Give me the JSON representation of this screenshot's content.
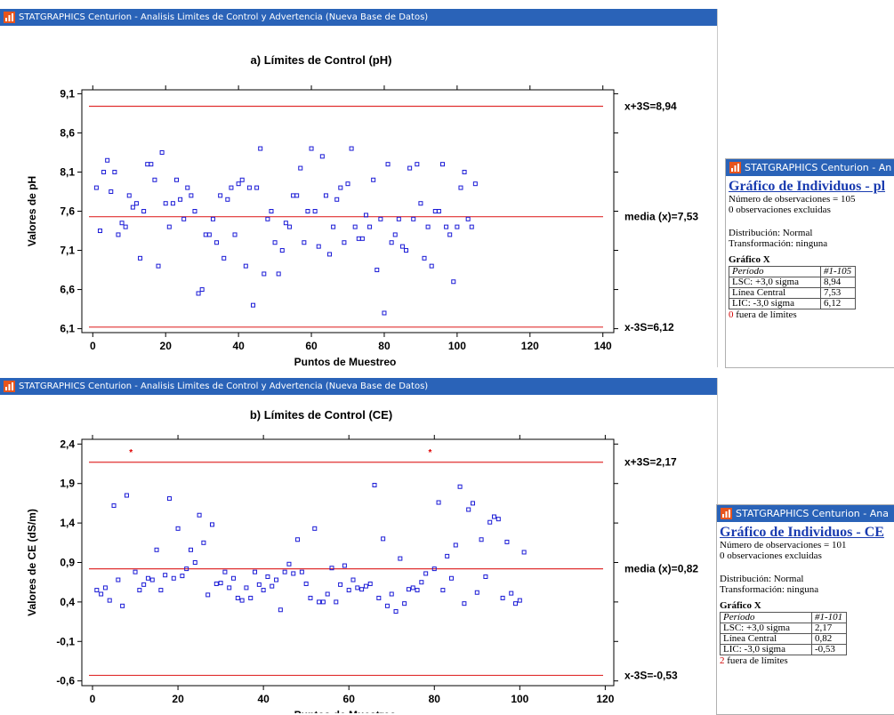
{
  "window_a": {
    "title": "STATGRAPHICS Centurion - Analisis Limites de Control y Advertencia (Nueva Base de Datos)"
  },
  "window_b": {
    "title": "STATGRAPHICS Centurion - Analisis Limites de Control y Advertencia (Nueva Base de Datos)"
  },
  "info_a": {
    "title": "STATGRAPHICS Centurion - An",
    "heading": "Gráfico de Individuos - pl",
    "n_obs": "Número de observaciones = 105",
    "excluded": "0 observaciones excluidas",
    "distribution": "Distribución: Normal",
    "transformation": "Transformación: ninguna",
    "section": "Gráfico X",
    "table": [
      [
        "Período",
        "#1-105"
      ],
      [
        "LSC: +3,0 sigma",
        "8,94"
      ],
      [
        "Línea Central",
        "7,53"
      ],
      [
        "LIC: -3,0 sigma",
        "6,12"
      ]
    ],
    "out_count": "0",
    "out_text": " fuera de límites"
  },
  "info_b": {
    "title": "STATGRAPHICS Centurion - Ana",
    "heading": "Gráfico de Individuos - CE",
    "n_obs": "Número de observaciones = 101",
    "excluded": "0 observaciones excluidas",
    "distribution": "Distribución: Normal",
    "transformation": "Transformación: ninguna",
    "section": "Gráfico X",
    "table": [
      [
        "Período",
        "#1-101"
      ],
      [
        "LSC: +3,0 sigma",
        "2,17"
      ],
      [
        "Línea Central",
        "0,82"
      ],
      [
        "LIC: -3,0 sigma",
        "-0,53"
      ]
    ],
    "out_count": "2",
    "out_text": " fuera de límites"
  },
  "chart_data": [
    {
      "type": "scatter",
      "title": "a) Límites de Control (pH)",
      "xlabel": "Puntos de Muestreo",
      "ylabel": "Valores de pH",
      "xlim": [
        -3,
        143
      ],
      "ylim": [
        6.05,
        9.15
      ],
      "xticks": [
        0,
        20,
        40,
        60,
        80,
        100,
        120,
        140
      ],
      "yticks": [
        6.1,
        6.6,
        7.1,
        7.6,
        8.1,
        8.6,
        9.1
      ],
      "ytick_labels": [
        "6,1",
        "6,6",
        "7,1",
        "7,6",
        "8,1",
        "8,6",
        "9,1"
      ],
      "grid": false,
      "ucl": 8.94,
      "center": 7.53,
      "lcl": 6.12,
      "ucl_label": "x+3S=8,94",
      "center_label": "media (x)=7,53",
      "lcl_label": "x-3S=6,12",
      "line_color": "#e03030",
      "point_color": "#1a1ad6",
      "out_color": "#e00000",
      "x": [
        1,
        2,
        3,
        4,
        5,
        6,
        7,
        8,
        9,
        10,
        11,
        12,
        13,
        14,
        15,
        16,
        17,
        18,
        19,
        20,
        21,
        22,
        23,
        24,
        25,
        26,
        27,
        28,
        29,
        30,
        31,
        32,
        33,
        34,
        35,
        36,
        37,
        38,
        39,
        40,
        41,
        42,
        43,
        44,
        45,
        46,
        47,
        48,
        49,
        50,
        51,
        52,
        53,
        54,
        55,
        56,
        57,
        58,
        59,
        60,
        61,
        62,
        63,
        64,
        65,
        66,
        67,
        68,
        69,
        70,
        71,
        72,
        73,
        74,
        75,
        76,
        77,
        78,
        79,
        80,
        81,
        82,
        83,
        84,
        85,
        86,
        87,
        88,
        89,
        90,
        91,
        92,
        93,
        94,
        95,
        96,
        97,
        98,
        99,
        100,
        101,
        102,
        103,
        104,
        105
      ],
      "y": [
        7.9,
        7.35,
        8.1,
        8.25,
        7.85,
        8.1,
        7.3,
        7.45,
        7.4,
        7.8,
        7.65,
        7.7,
        7.0,
        7.6,
        8.2,
        8.2,
        8.0,
        6.9,
        8.35,
        7.7,
        7.4,
        7.7,
        8.0,
        7.75,
        7.5,
        7.9,
        7.8,
        7.6,
        6.55,
        6.6,
        7.3,
        7.3,
        7.5,
        7.2,
        7.8,
        7.0,
        7.75,
        7.9,
        7.3,
        7.95,
        8.0,
        6.9,
        7.9,
        6.4,
        7.9,
        8.4,
        6.8,
        7.5,
        7.6,
        7.2,
        6.8,
        7.1,
        7.45,
        7.4,
        7.8,
        7.8,
        8.15,
        7.2,
        7.6,
        8.4,
        7.6,
        7.15,
        8.3,
        7.8,
        7.05,
        7.4,
        7.75,
        7.9,
        7.2,
        7.95,
        8.4,
        7.4,
        7.25,
        7.25,
        7.55,
        7.4,
        8.0,
        6.85,
        7.5,
        6.3,
        8.2,
        7.2,
        7.3,
        7.5,
        7.15,
        7.1,
        8.15,
        7.5,
        8.2,
        7.7,
        7.0,
        7.4,
        6.9,
        7.6,
        7.6,
        8.2,
        7.4,
        7.3,
        6.7,
        7.4,
        7.9,
        8.1,
        7.5,
        7.4,
        7.95
      ],
      "x_plot": [
        1,
        2,
        3,
        4,
        5,
        6,
        7,
        8,
        9,
        10,
        11,
        12,
        13,
        14,
        15,
        16,
        17,
        18,
        19,
        20,
        21,
        22,
        23,
        24,
        25,
        26,
        27,
        28,
        29,
        30,
        31,
        32,
        33,
        34,
        35,
        36,
        37,
        38,
        39,
        40,
        41,
        42,
        43,
        44,
        45,
        46,
        47,
        48,
        49,
        50,
        51,
        52,
        53,
        54,
        55,
        56,
        57,
        58,
        59,
        60,
        61,
        62,
        63,
        64,
        65,
        66,
        67,
        68,
        69,
        70,
        71,
        72,
        73,
        74,
        75,
        76,
        77,
        78,
        79,
        80,
        81,
        82,
        83,
        84,
        85,
        86,
        87,
        88,
        89,
        90,
        91,
        92,
        93,
        94,
        95,
        96,
        97,
        98,
        99,
        100,
        101,
        102,
        103,
        104,
        105
      ]
    },
    {
      "type": "scatter",
      "title": "b) Límites de Control (CE)",
      "xlabel": "Puntos de Muestreo",
      "ylabel": "Valores de CE (dS/m)",
      "xlim": [
        -2.5,
        122
      ],
      "ylim": [
        -0.66,
        2.46
      ],
      "xticks": [
        0,
        20,
        40,
        60,
        80,
        100,
        120
      ],
      "yticks": [
        -0.6,
        -0.1,
        0.4,
        0.9,
        1.4,
        1.9,
        2.4
      ],
      "ytick_labels": [
        "-0,6",
        "-0,1",
        "0,4",
        "0,9",
        "1,4",
        "1,9",
        "2,4"
      ],
      "grid": false,
      "ucl": 2.17,
      "center": 0.82,
      "lcl": -0.53,
      "ucl_label": "x+3S=2,17",
      "center_label": "media (x)=0,82",
      "lcl_label": "x-3S=-0,53",
      "line_color": "#e03030",
      "point_color": "#1a1ad6",
      "out_color": "#e00000",
      "x": [
        1,
        2,
        3,
        4,
        5,
        6,
        7,
        8,
        9,
        10,
        11,
        12,
        13,
        14,
        15,
        16,
        17,
        18,
        19,
        20,
        21,
        22,
        23,
        24,
        25,
        26,
        27,
        28,
        29,
        30,
        31,
        32,
        33,
        34,
        35,
        36,
        37,
        38,
        39,
        40,
        41,
        42,
        43,
        44,
        45,
        46,
        47,
        48,
        49,
        50,
        51,
        52,
        53,
        54,
        55,
        56,
        57,
        58,
        59,
        60,
        61,
        62,
        63,
        64,
        65,
        66,
        67,
        68,
        69,
        70,
        71,
        72,
        73,
        74,
        75,
        76,
        77,
        78,
        79,
        80,
        81,
        82,
        83,
        84,
        85,
        86,
        87,
        88,
        89,
        90,
        91,
        92,
        93,
        94,
        95,
        96,
        97,
        98,
        99,
        100,
        101
      ],
      "y": [
        0.55,
        0.5,
        0.58,
        0.42,
        1.62,
        0.68,
        0.35,
        1.75,
        2.3,
        0.78,
        0.55,
        0.62,
        0.7,
        0.68,
        1.06,
        0.55,
        0.74,
        1.71,
        0.7,
        1.33,
        0.73,
        0.82,
        1.06,
        0.9,
        1.5,
        1.15,
        0.49,
        1.38,
        0.63,
        0.64,
        0.78,
        0.58,
        0.7,
        0.45,
        0.42,
        0.58,
        0.45,
        0.78,
        0.62,
        0.55,
        0.72,
        0.6,
        0.68,
        0.3,
        0.78,
        0.88,
        0.76,
        1.19,
        0.78,
        0.63,
        0.45,
        1.33,
        0.4,
        0.4,
        0.5,
        0.83,
        0.4,
        0.62,
        0.86,
        0.55,
        0.68,
        0.58,
        0.56,
        0.6,
        0.63,
        1.88,
        0.45,
        1.2,
        0.35,
        0.5,
        0.28,
        0.95,
        0.38,
        0.56,
        0.58,
        0.55,
        0.65,
        0.76,
        2.3,
        0.82,
        1.66,
        0.55,
        0.98,
        0.7,
        1.12,
        1.86,
        0.38,
        1.57,
        1.65,
        0.52,
        1.19,
        0.72,
        1.41,
        1.48,
        1.45,
        0.45,
        1.16,
        0.51,
        0.38,
        0.42,
        1.03
      ],
      "out_points": [
        9,
        79
      ]
    }
  ]
}
